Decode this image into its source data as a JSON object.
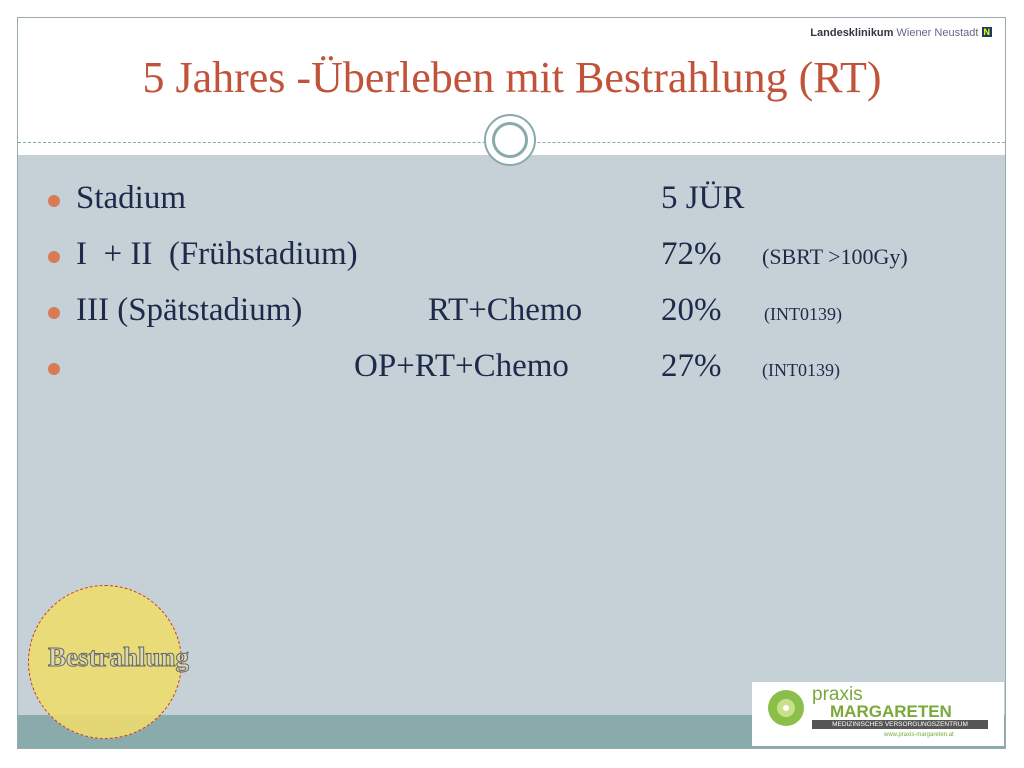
{
  "header": {
    "hospital_logo": {
      "name": "Landesklinikum",
      "place": "Wiener Neustadt",
      "badge": "N"
    },
    "title": "5 Jahres -Überleben mit Bestrahlung (RT)"
  },
  "bullets": [
    {
      "stage": "Stadium",
      "rate": "5 JÜR"
    },
    {
      "stage": "I  + II  (Frühstadium)",
      "rate": "72%",
      "note": "(SBRT >100Gy)"
    },
    {
      "stage": "III (Spätstadium)",
      "treatment": "RT+Chemo",
      "rate": "20%",
      "note": "(INT0139)"
    },
    {
      "treatment": "OP+RT+Chemo",
      "rate": "27%",
      "note": "(INT0139)"
    }
  ],
  "footer": {
    "section": "Bestrahlung",
    "practice_logo": {
      "line1": "praxis",
      "line2": "MARGARETEN",
      "subtitle": "MEDIZINISCHES VERSORGUNGSZENTRUM",
      "url": "www.praxis-margareten.at"
    }
  }
}
